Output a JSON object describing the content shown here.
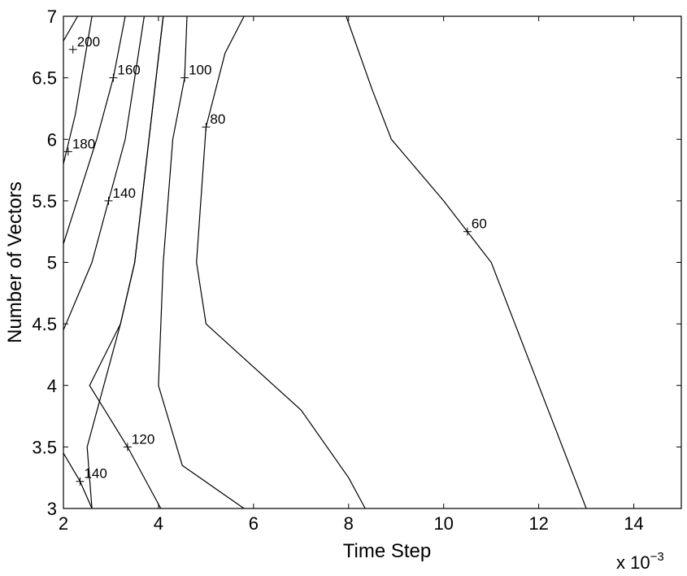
{
  "chart_data": {
    "type": "contour",
    "xlabel": "Time Step",
    "ylabel": "Number of Vectors",
    "x_multiplier_label": "x 10",
    "x_multiplier_exponent": "−3",
    "xlim": [
      2,
      15
    ],
    "ylim": [
      3,
      7
    ],
    "xticks": [
      2,
      4,
      6,
      8,
      10,
      12,
      14
    ],
    "yticks": [
      3,
      3.5,
      4,
      4.5,
      5,
      5.5,
      6,
      6.5,
      7
    ],
    "xtick_labels": [
      "2",
      "4",
      "6",
      "8",
      "10",
      "12",
      "14"
    ],
    "ytick_labels": [
      "3",
      "3.5",
      "4",
      "4.5",
      "5",
      "5.5",
      "6",
      "6.5",
      "7"
    ],
    "grid": false,
    "contours": [
      {
        "level": "200",
        "points": [
          [
            2.0,
            6.8
          ],
          [
            2.3,
            7.0
          ]
        ]
      },
      {
        "level": "180",
        "points": [
          [
            2.0,
            5.8
          ],
          [
            2.25,
            6.2
          ],
          [
            2.6,
            7.0
          ]
        ]
      },
      {
        "level": "160",
        "points": [
          [
            2.0,
            5.15
          ],
          [
            2.7,
            6.0
          ],
          [
            3.05,
            6.5
          ],
          [
            3.3,
            7.0
          ]
        ]
      },
      {
        "level": "140",
        "points": [
          [
            2.0,
            4.45
          ],
          [
            2.6,
            5.0
          ],
          [
            2.95,
            5.5
          ],
          [
            3.3,
            6.0
          ],
          [
            3.7,
            7.0
          ]
        ]
      },
      {
        "level": "120",
        "points": [
          [
            2.6,
            3.0
          ],
          [
            2.5,
            3.5
          ],
          [
            3.2,
            4.5
          ],
          [
            3.5,
            5.0
          ],
          [
            3.8,
            6.0
          ],
          [
            4.1,
            7.0
          ]
        ]
      },
      {
        "level": "140",
        "points": [
          [
            2.0,
            3.45
          ],
          [
            2.35,
            3.22
          ],
          [
            2.6,
            3.0
          ]
        ]
      },
      {
        "level": "120",
        "points": [
          [
            4.05,
            3.0
          ],
          [
            3.35,
            3.5
          ],
          [
            2.55,
            4.0
          ],
          [
            3.2,
            4.5
          ],
          [
            3.5,
            5.0
          ],
          [
            3.8,
            6.0
          ],
          [
            4.1,
            7.0
          ]
        ]
      },
      {
        "level": "100",
        "points": [
          [
            5.8,
            3.0
          ],
          [
            4.5,
            3.35
          ],
          [
            4.0,
            4.0
          ],
          [
            4.1,
            5.0
          ],
          [
            4.3,
            6.0
          ],
          [
            4.55,
            6.5
          ],
          [
            4.6,
            7.0
          ]
        ]
      },
      {
        "level": "80",
        "points": [
          [
            8.35,
            3.0
          ],
          [
            8.0,
            3.25
          ],
          [
            7.0,
            3.8
          ],
          [
            6.0,
            4.15
          ],
          [
            5.0,
            4.5
          ],
          [
            4.8,
            5.0
          ],
          [
            5.0,
            6.1
          ],
          [
            5.4,
            6.7
          ],
          [
            5.8,
            7.0
          ]
        ]
      },
      {
        "level": "60",
        "points": [
          [
            13.0,
            3.0
          ],
          [
            12.0,
            4.0
          ],
          [
            11.0,
            5.0
          ],
          [
            10.5,
            5.25
          ],
          [
            10.0,
            5.5
          ],
          [
            8.9,
            6.0
          ],
          [
            8.5,
            6.4
          ],
          [
            7.95,
            7.0
          ]
        ]
      }
    ],
    "labels": [
      {
        "text": "200",
        "x": 2.2,
        "y": 6.73
      },
      {
        "text": "160",
        "x": 3.05,
        "y": 6.5
      },
      {
        "text": "100",
        "x": 4.55,
        "y": 6.5
      },
      {
        "text": "80",
        "x": 5.0,
        "y": 6.1
      },
      {
        "text": "180",
        "x": 2.1,
        "y": 5.9
      },
      {
        "text": "140",
        "x": 2.95,
        "y": 5.5
      },
      {
        "text": "60",
        "x": 10.5,
        "y": 5.25
      },
      {
        "text": "120",
        "x": 3.35,
        "y": 3.5
      },
      {
        "text": "140",
        "x": 2.35,
        "y": 3.22
      }
    ]
  }
}
